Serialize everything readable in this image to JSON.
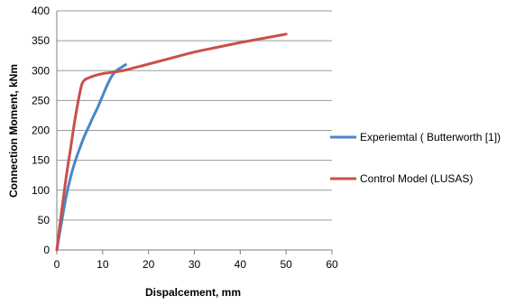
{
  "chart_data": {
    "type": "line",
    "xlabel": "Dispalcement, mm",
    "ylabel": "Connection Moment, kNm",
    "xlim": [
      0,
      60
    ],
    "ylim": [
      0,
      400
    ],
    "xticks": [
      0,
      10,
      20,
      30,
      40,
      50,
      60
    ],
    "yticks": [
      0,
      50,
      100,
      150,
      200,
      250,
      300,
      350,
      400
    ],
    "grid": "horizontal",
    "legend_position": "right",
    "series": [
      {
        "name": "Experiemtal ( Butterworth [1])",
        "color": "#4a86c8",
        "x": [
          0,
          1,
          2,
          3,
          4,
          5,
          6,
          7,
          8,
          9,
          10,
          11,
          12,
          13,
          14,
          15
        ],
        "y": [
          0,
          45,
          88,
          122,
          148,
          170,
          190,
          207,
          224,
          240,
          258,
          276,
          291,
          300,
          305,
          310
        ]
      },
      {
        "name": "Control Model (LUSAS)",
        "color": "#c8504b",
        "x": [
          0,
          1,
          2,
          3,
          4,
          5,
          5.5,
          6,
          7,
          8,
          10,
          12,
          15,
          20,
          25,
          30,
          35,
          40,
          45,
          50
        ],
        "y": [
          0,
          62,
          120,
          170,
          220,
          262,
          278,
          284,
          288,
          291,
          295,
          297,
          301,
          311,
          321,
          331,
          339,
          347,
          354,
          361
        ]
      }
    ]
  }
}
